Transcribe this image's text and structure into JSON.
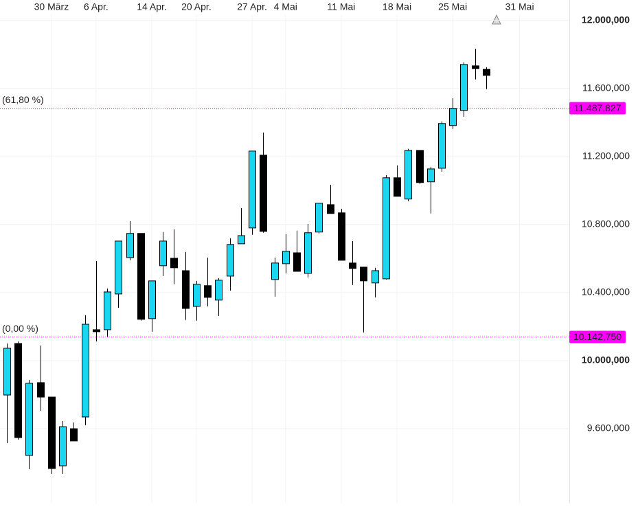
{
  "chart_data": {
    "type": "candlestick",
    "categories": [
      null,
      null,
      null,
      null,
      "30 März",
      null,
      null,
      null,
      "6 Apr.",
      null,
      null,
      null,
      null,
      "14 Apr.",
      null,
      null,
      null,
      "20 Apr.",
      null,
      null,
      null,
      null,
      "27 Apr.",
      null,
      null,
      "4 Mai",
      null,
      null,
      null,
      null,
      "11 Mai",
      null,
      null,
      null,
      null,
      "18 Mai",
      null,
      null,
      null,
      null,
      "25 Mai",
      null,
      null,
      null,
      null,
      null,
      "31 Mai"
    ],
    "open": [
      9798000,
      10101000,
      9443000,
      9871000,
      9786000,
      9382000,
      9600000,
      9669000,
      10182000,
      10182000,
      10392000,
      10606000,
      10748000,
      10247000,
      10558000,
      10602000,
      10529000,
      10319000,
      10441000,
      10356000,
      10497000,
      10687000,
      10780000,
      11208000,
      10477000,
      10570000,
      10634000,
      10513000,
      10756000,
      10917000,
      10869000,
      10574000,
      10550000,
      10457000,
      10481000,
      11075000,
      10950000,
      11236000,
      11051000,
      11131000,
      11382000,
      11471000,
      11733000,
      11713000,
      null,
      null,
      null
    ],
    "high": [
      10101000,
      10113000,
      9887000,
      10089000,
      9786000,
      9645000,
      9637000,
      10267000,
      10586000,
      10424000,
      10703000,
      10820000,
      10748000,
      10469000,
      10756000,
      10772000,
      10639000,
      10469000,
      10606000,
      10485000,
      10719000,
      10897000,
      11232000,
      11341000,
      10606000,
      10744000,
      10764000,
      10804000,
      10925000,
      11034000,
      10893000,
      10703000,
      10550000,
      10546000,
      11091000,
      11148000,
      11245000,
      11236000,
      11139000,
      11406000,
      11543000,
      11754000,
      11834000,
      11725000,
      null,
      null,
      null
    ],
    "low": [
      9515000,
      9536000,
      9362000,
      9705000,
      9334000,
      9334000,
      9528000,
      9620000,
      10113000,
      10142000,
      10311000,
      10590000,
      10235000,
      10170000,
      10497000,
      10449000,
      10239000,
      10235000,
      10319000,
      10263000,
      10412000,
      10687000,
      10740000,
      10752000,
      10376000,
      10513000,
      10525000,
      10489000,
      10748000,
      10865000,
      10590000,
      10445000,
      10166000,
      10372000,
      10477000,
      10966000,
      10937000,
      11038000,
      10865000,
      11111000,
      11362000,
      11434000,
      11653000,
      11596000,
      null,
      null,
      null
    ],
    "close": [
      10073000,
      9548000,
      9867000,
      9786000,
      9366000,
      9612000,
      9528000,
      10214000,
      10170000,
      10404000,
      10703000,
      10748000,
      10243000,
      10469000,
      10703000,
      10546000,
      10307000,
      10449000,
      10372000,
      10473000,
      10683000,
      10735000,
      11232000,
      10760000,
      10574000,
      10643000,
      10525000,
      10752000,
      10925000,
      10865000,
      10590000,
      10542000,
      10469000,
      10529000,
      11075000,
      10966000,
      11236000,
      11047000,
      11127000,
      11394000,
      11483000,
      11741000,
      11717000,
      11677000,
      null,
      null,
      null
    ],
    "up_color": "#1ad6f0",
    "down_color": "#000000",
    "ylim": [
      9160000,
      12120000
    ],
    "yticks": [
      {
        "value": 9600000,
        "label": "9.600,000"
      },
      {
        "value": 10000000,
        "label": "10.000,000"
      },
      {
        "value": 10400000,
        "label": "10.400,000"
      },
      {
        "value": 10800000,
        "label": "10.800,000"
      },
      {
        "value": 11200000,
        "label": "11.200,000"
      },
      {
        "value": 11600000,
        "label": "11.600,000"
      },
      {
        "value": 12000000,
        "label": "12.000,000"
      }
    ],
    "grid": true,
    "levels": [
      {
        "label": "(61,80 %)",
        "value": 11487827,
        "value_label": "11.487,827",
        "color": "#ff00ff"
      },
      {
        "label": "(0,00 %)",
        "value": 10142750,
        "value_label": "10.142,750",
        "color": "#ff00ff"
      }
    ]
  }
}
